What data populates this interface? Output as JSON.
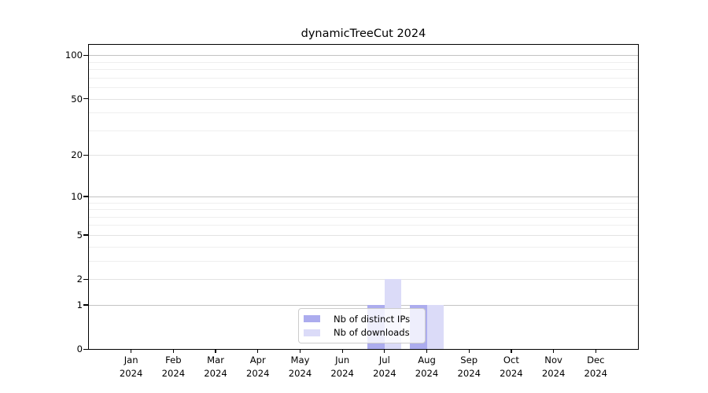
{
  "chart_data": {
    "type": "bar",
    "title": "dynamicTreeCut 2024",
    "categories": [
      "Jan",
      "Feb",
      "Mar",
      "Apr",
      "May",
      "Jun",
      "Jul",
      "Aug",
      "Sep",
      "Oct",
      "Nov",
      "Dec"
    ],
    "x_year_label": "2024",
    "series": [
      {
        "name": "Nb of distinct IPs",
        "color": "#acacee",
        "values": [
          0,
          0,
          0,
          0,
          0,
          0,
          1,
          1,
          0,
          0,
          0,
          0
        ]
      },
      {
        "name": "Nb of downloads",
        "color": "#dbdbf8",
        "values": [
          0,
          0,
          0,
          0,
          0,
          0,
          2,
          1,
          0,
          0,
          0,
          0
        ]
      }
    ],
    "yscale": "log1p",
    "ylim": [
      0,
      118
    ],
    "yticks": [
      0,
      1,
      2,
      5,
      10,
      20,
      50,
      100
    ],
    "ytick_labels": [
      "0",
      "1",
      "2",
      "5",
      "10",
      "20",
      "50",
      "100"
    ],
    "minor_yticks": [
      3,
      4,
      6,
      7,
      8,
      9,
      30,
      40,
      60,
      70,
      80,
      90
    ],
    "grid": true,
    "legend": {
      "position": "lower center",
      "entries": [
        "Nb of distinct IPs",
        "Nb of downloads"
      ]
    },
    "colors": {
      "grid_decade": "#c3c3c3",
      "grid_major": "#e3e3e3",
      "grid_minor": "#efefef",
      "axis": "#000000"
    }
  }
}
